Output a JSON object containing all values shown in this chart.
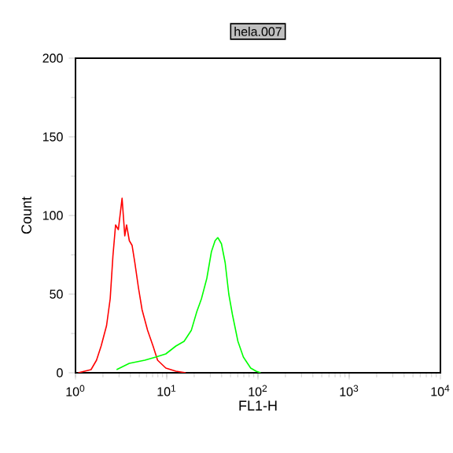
{
  "chart_data": {
    "type": "line",
    "title": "hela.007",
    "xlabel": "FL1-H",
    "ylabel": "Count",
    "log": "x",
    "xlim": [
      1,
      10000
    ],
    "ylim": [
      0,
      200
    ],
    "xticks": [
      {
        "value": 1,
        "label": "10$^{0}$"
      },
      {
        "value": 10,
        "label": "10$^{1}$"
      },
      {
        "value": 100,
        "label": "10$^{2}$"
      },
      {
        "value": 1000,
        "label": "10$^{3}$"
      },
      {
        "value": 10000,
        "label": "10$^{4}$"
      }
    ],
    "yticks": [
      0,
      50,
      100,
      150,
      200
    ],
    "grid": false,
    "marker": "none",
    "line_style": "solid",
    "series": [
      {
        "color": "#ff0000",
        "x": [
          1.07,
          1.48,
          1.7,
          1.91,
          2.19,
          2.4,
          2.57,
          2.75,
          2.95,
          3.24,
          3.47,
          3.63,
          3.89,
          4.17,
          4.47,
          4.9,
          5.37,
          6.17,
          7.08,
          7.94,
          9.77,
          12.6,
          16.2
        ],
        "values": [
          0,
          2,
          8,
          17,
          30,
          47,
          74,
          94,
          91,
          111,
          87,
          94,
          84,
          81,
          70,
          54,
          40,
          27,
          17,
          8,
          3,
          1,
          0
        ]
      },
      {
        "color": "#00ff00",
        "x": [
          2.82,
          3.89,
          5.75,
          7.59,
          9.77,
          12.6,
          15.5,
          18.6,
          21.4,
          24.0,
          27.5,
          30.9,
          33.9,
          36.3,
          39.8,
          43.7,
          47.9,
          52.5,
          60.3,
          69.2,
          83.2,
          95.5,
          107
        ],
        "values": [
          2,
          6,
          8,
          10,
          12,
          17,
          20,
          27,
          39,
          47,
          60,
          77,
          84,
          86,
          82,
          70,
          50,
          37,
          20,
          10,
          3,
          1,
          0
        ]
      }
    ]
  }
}
